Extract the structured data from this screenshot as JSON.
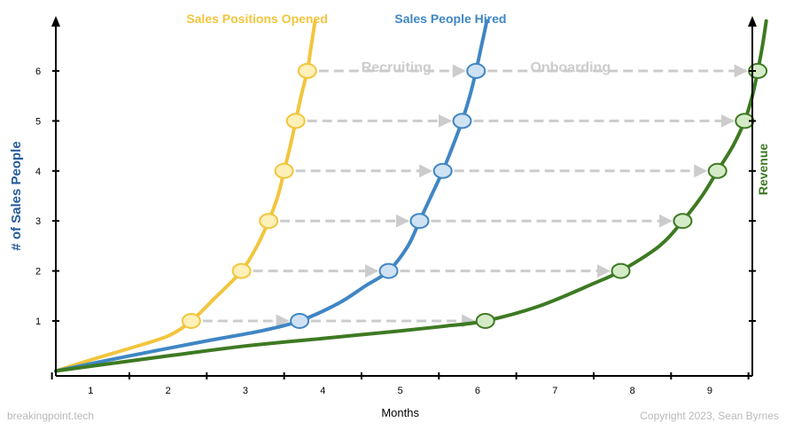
{
  "chart_data": {
    "type": "line",
    "title": "",
    "xlabel": "Months",
    "ylabel": "# of Sales People",
    "y2label": "Revenue",
    "x_ticks": [
      "1",
      "2",
      "3",
      "4",
      "5",
      "6",
      "7",
      "8",
      "9"
    ],
    "y_ticks": [
      "1",
      "2",
      "3",
      "4",
      "5",
      "6"
    ],
    "xlim": [
      0.55,
      9.55
    ],
    "ylim": [
      -0.1,
      7.1
    ],
    "phase_labels": [
      "Recruiting",
      "Onboarding"
    ],
    "series": [
      {
        "name": "Sales Positions Opened",
        "color": "#f2c53d",
        "marker_fill": "#fdf0b8",
        "curve": [
          [
            0.55,
            0
          ],
          [
            1.0,
            0.22
          ],
          [
            1.5,
            0.45
          ],
          [
            2.0,
            0.7
          ],
          [
            2.3,
            1.0
          ],
          [
            2.6,
            1.45
          ],
          [
            2.95,
            2.0
          ],
          [
            3.15,
            2.5
          ],
          [
            3.3,
            3.0
          ],
          [
            3.42,
            3.5
          ],
          [
            3.5,
            4.0
          ],
          [
            3.58,
            4.5
          ],
          [
            3.65,
            5.0
          ],
          [
            3.72,
            5.5
          ],
          [
            3.8,
            6.0
          ],
          [
            3.85,
            6.5
          ],
          [
            3.9,
            7.0
          ]
        ],
        "points": [
          {
            "x": 2.3,
            "y": 1
          },
          {
            "x": 2.95,
            "y": 2
          },
          {
            "x": 3.3,
            "y": 3
          },
          {
            "x": 3.5,
            "y": 4
          },
          {
            "x": 3.65,
            "y": 5
          },
          {
            "x": 3.8,
            "y": 6
          }
        ]
      },
      {
        "name": "Sales People Hired",
        "color": "#3f86c4",
        "marker_fill": "#cfe2f3",
        "curve": [
          [
            0.55,
            0
          ],
          [
            1.5,
            0.3
          ],
          [
            2.5,
            0.6
          ],
          [
            3.2,
            0.8
          ],
          [
            3.7,
            1.0
          ],
          [
            4.2,
            1.35
          ],
          [
            4.55,
            1.7
          ],
          [
            4.85,
            2.0
          ],
          [
            5.1,
            2.5
          ],
          [
            5.25,
            3.0
          ],
          [
            5.4,
            3.5
          ],
          [
            5.55,
            4.0
          ],
          [
            5.68,
            4.5
          ],
          [
            5.8,
            5.0
          ],
          [
            5.9,
            5.5
          ],
          [
            5.98,
            6.0
          ],
          [
            6.05,
            6.5
          ],
          [
            6.12,
            7.0
          ]
        ],
        "points": [
          {
            "x": 3.7,
            "y": 1
          },
          {
            "x": 4.85,
            "y": 2
          },
          {
            "x": 5.25,
            "y": 3
          },
          {
            "x": 5.55,
            "y": 4
          },
          {
            "x": 5.8,
            "y": 5
          },
          {
            "x": 5.98,
            "y": 6
          }
        ]
      },
      {
        "name": "Revenue",
        "color": "#3d7a22",
        "marker_fill": "#d5ebc8",
        "curve": [
          [
            0.55,
            0
          ],
          [
            2.0,
            0.3
          ],
          [
            3.0,
            0.5
          ],
          [
            4.0,
            0.65
          ],
          [
            5.0,
            0.8
          ],
          [
            5.6,
            0.9
          ],
          [
            6.1,
            1.0
          ],
          [
            6.8,
            1.3
          ],
          [
            7.5,
            1.75
          ],
          [
            7.85,
            2.0
          ],
          [
            8.35,
            2.5
          ],
          [
            8.65,
            3.0
          ],
          [
            8.9,
            3.5
          ],
          [
            9.1,
            4.0
          ],
          [
            9.3,
            4.5
          ],
          [
            9.45,
            5.0
          ],
          [
            9.55,
            5.5
          ],
          [
            9.62,
            6.0
          ],
          [
            9.68,
            6.5
          ],
          [
            9.73,
            7.0
          ]
        ],
        "points": [
          {
            "x": 6.1,
            "y": 1
          },
          {
            "x": 7.85,
            "y": 2
          },
          {
            "x": 8.65,
            "y": 3
          },
          {
            "x": 9.1,
            "y": 4
          },
          {
            "x": 9.45,
            "y": 5
          },
          {
            "x": 9.62,
            "y": 6
          }
        ]
      }
    ],
    "arrows": [
      {
        "y": 1,
        "from": 2.3,
        "to": 3.7
      },
      {
        "y": 2,
        "from": 2.95,
        "to": 4.85
      },
      {
        "y": 3,
        "from": 3.3,
        "to": 5.25
      },
      {
        "y": 4,
        "from": 3.5,
        "to": 5.55
      },
      {
        "y": 5,
        "from": 3.65,
        "to": 5.8
      },
      {
        "y": 6,
        "from": 3.8,
        "to": 5.98
      },
      {
        "y": 1,
        "from": 3.7,
        "to": 6.1
      },
      {
        "y": 2,
        "from": 4.85,
        "to": 7.85
      },
      {
        "y": 3,
        "from": 5.25,
        "to": 8.65
      },
      {
        "y": 4,
        "from": 5.55,
        "to": 9.1
      },
      {
        "y": 5,
        "from": 5.8,
        "to": 9.45
      },
      {
        "y": 6,
        "from": 5.98,
        "to": 9.62
      }
    ]
  },
  "footer": {
    "left": "breakingpoint.tech",
    "right": "Copyright 2023, Sean Byrnes"
  }
}
